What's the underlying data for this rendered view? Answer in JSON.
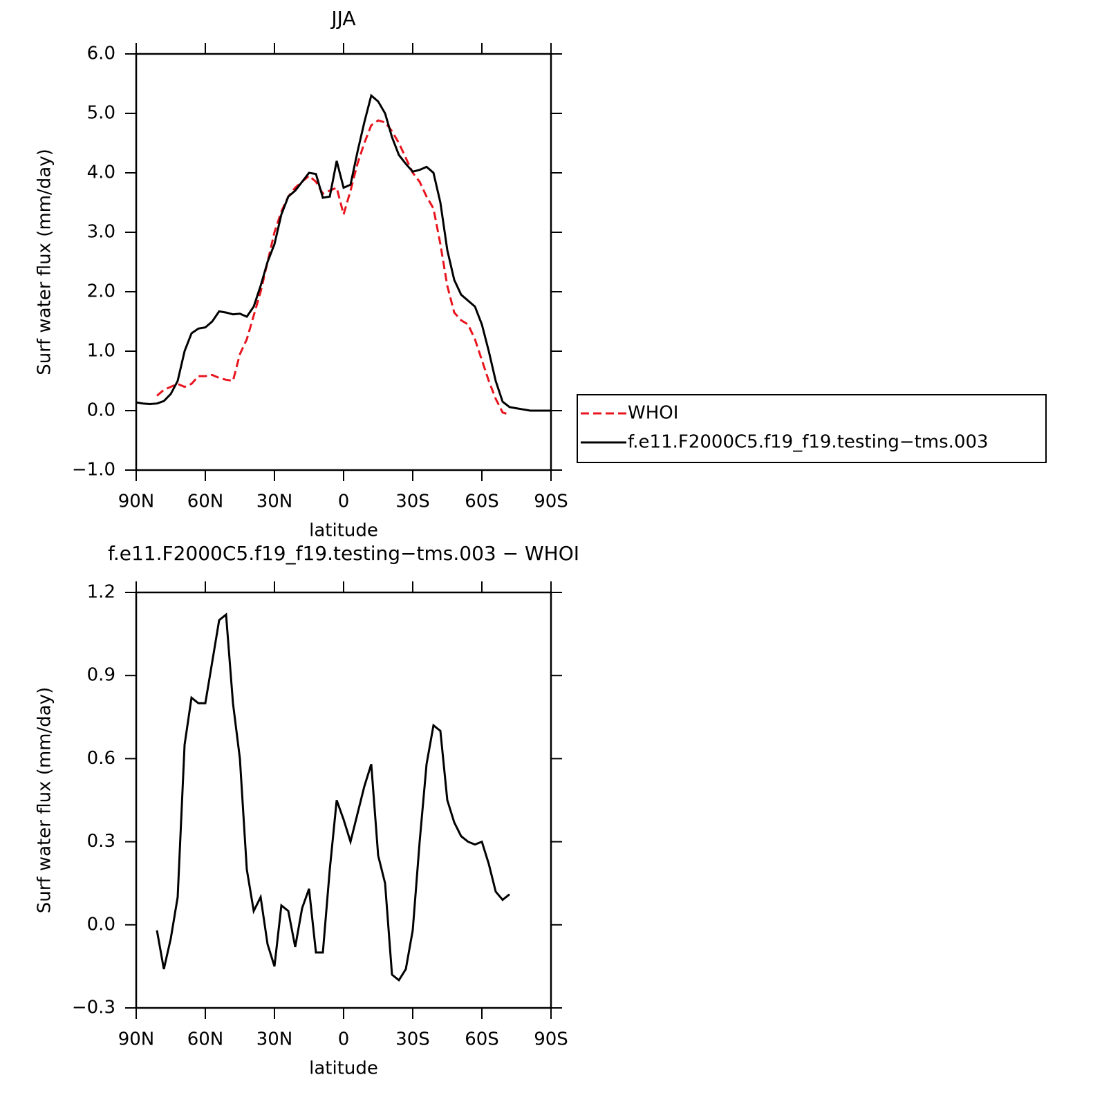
{
  "chart_data": [
    {
      "type": "line",
      "title": "JJA",
      "xlabel": "latitude",
      "ylabel": "Surf  water  flux  (mm/day)",
      "xlim": [
        90,
        -90
      ],
      "xticks": [
        {
          "value": 90,
          "label": "90N"
        },
        {
          "value": 60,
          "label": "60N"
        },
        {
          "value": 30,
          "label": "30N"
        },
        0,
        {
          "value": -30,
          "label": "30S"
        },
        {
          "value": -60,
          "label": "60S"
        },
        {
          "value": -90,
          "label": "90S"
        }
      ],
      "ylim": [
        -1,
        6
      ],
      "yticks": [
        {
          "value": -1,
          "label": "−1.0"
        },
        {
          "value": 0,
          "label": "0.0"
        },
        {
          "value": 1,
          "label": "1.0"
        },
        {
          "value": 2,
          "label": "2.0"
        },
        {
          "value": 3,
          "label": "3.0"
        },
        {
          "value": 4,
          "label": "4.0"
        },
        {
          "value": 5,
          "label": "5.0"
        },
        {
          "value": 6,
          "label": "6.0"
        }
      ],
      "legend": "right",
      "x": [
        90,
        87,
        84,
        81,
        78,
        75,
        72,
        69,
        66,
        63,
        60,
        57,
        54,
        51,
        48,
        45,
        42,
        39,
        36,
        33,
        30,
        27,
        24,
        21,
        18,
        15,
        12,
        9,
        6,
        3,
        0,
        -3,
        -6,
        -9,
        -12,
        -15,
        -18,
        -21,
        -24,
        -27,
        -30,
        -33,
        -36,
        -39,
        -42,
        -45,
        -48,
        -51,
        -54,
        -57,
        -60,
        -63,
        -66,
        -69,
        -72,
        -75,
        -78,
        -81,
        -84,
        -87,
        -90
      ],
      "series": [
        {
          "name": "WHOI",
          "color": "#e8141e",
          "style": "dashed",
          "values": [
            null,
            null,
            null,
            0.25,
            0.35,
            0.4,
            0.45,
            0.4,
            0.45,
            0.58,
            0.58,
            0.6,
            0.55,
            0.52,
            0.5,
            0.95,
            1.2,
            1.6,
            2.0,
            2.5,
            3.0,
            3.35,
            3.6,
            3.75,
            3.85,
            3.95,
            3.85,
            3.65,
            3.7,
            3.75,
            3.3,
            3.7,
            4.15,
            4.5,
            4.8,
            4.88,
            4.85,
            4.7,
            4.5,
            4.25,
            4.0,
            3.85,
            3.6,
            3.4,
            2.8,
            2.1,
            1.65,
            1.52,
            1.45,
            1.2,
            0.85,
            0.5,
            0.2,
            -0.03,
            -0.07,
            null,
            null,
            null,
            null,
            null,
            null
          ]
        },
        {
          "name": "f.e11.F2000C5.f19_f19.testing−tms.003",
          "color": "#000000",
          "style": "solid",
          "values": [
            0.14,
            0.12,
            0.11,
            0.12,
            0.16,
            0.28,
            0.5,
            1.0,
            1.3,
            1.38,
            1.4,
            1.5,
            1.67,
            1.65,
            1.62,
            1.63,
            1.58,
            1.75,
            2.1,
            2.5,
            2.8,
            3.3,
            3.6,
            3.7,
            3.85,
            4.0,
            3.98,
            3.58,
            3.6,
            4.2,
            3.75,
            3.8,
            4.35,
            4.85,
            5.3,
            5.2,
            5.0,
            4.6,
            4.3,
            4.15,
            4.02,
            4.05,
            4.1,
            4.0,
            3.5,
            2.7,
            2.2,
            1.95,
            1.85,
            1.75,
            1.45,
            1.0,
            0.5,
            0.15,
            0.06,
            0.04,
            0.02,
            0.0,
            0.0,
            0.0,
            0.0
          ]
        }
      ]
    },
    {
      "type": "line",
      "title": "f.e11.F2000C5.f19_f19.testing−tms.003  −  WHOI",
      "xlabel": "latitude",
      "ylabel": "Surf  water  flux  (mm/day)",
      "xlim": [
        90,
        -90
      ],
      "xticks": [
        {
          "value": 90,
          "label": "90N"
        },
        {
          "value": 60,
          "label": "60N"
        },
        {
          "value": 30,
          "label": "30N"
        },
        0,
        {
          "value": -30,
          "label": "30S"
        },
        {
          "value": -60,
          "label": "60S"
        },
        {
          "value": -90,
          "label": "90S"
        }
      ],
      "ylim": [
        -0.3,
        1.2
      ],
      "yticks": [
        {
          "value": -0.3,
          "label": "−0.3"
        },
        {
          "value": 0,
          "label": "0.0"
        },
        0.3,
        0.6,
        0.9,
        1.2
      ],
      "x": [
        81,
        78,
        75,
        72,
        69,
        66,
        63,
        60,
        57,
        54,
        51,
        48,
        45,
        42,
        39,
        36,
        33,
        30,
        27,
        24,
        21,
        18,
        15,
        12,
        9,
        6,
        3,
        0,
        -3,
        -6,
        -9,
        -12,
        -15,
        -18,
        -21,
        -24,
        -27,
        -30,
        -33,
        -36,
        -39,
        -42,
        -45,
        -48,
        -51,
        -54,
        -57,
        -60,
        -63,
        -66,
        -69,
        -72
      ],
      "series": [
        {
          "color": "#000000",
          "style": "solid",
          "values": [
            -0.02,
            -0.16,
            -0.05,
            0.1,
            0.65,
            0.82,
            0.8,
            0.8,
            0.95,
            1.1,
            1.12,
            0.8,
            0.6,
            0.2,
            0.05,
            0.1,
            -0.07,
            -0.15,
            0.07,
            0.05,
            -0.08,
            0.06,
            0.13,
            -0.1,
            -0.1,
            0.2,
            0.45,
            0.38,
            0.3,
            0.4,
            0.5,
            0.58,
            0.25,
            0.15,
            -0.18,
            -0.2,
            -0.16,
            -0.02,
            0.3,
            0.58,
            0.72,
            0.7,
            0.45,
            0.37,
            0.32,
            0.3,
            0.29,
            0.3,
            0.22,
            0.12,
            0.09,
            0.11
          ]
        }
      ]
    }
  ]
}
